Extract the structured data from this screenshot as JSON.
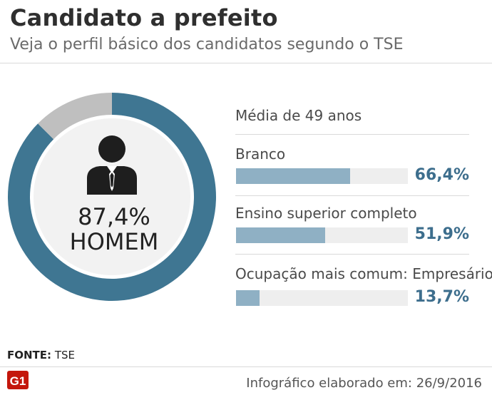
{
  "header": {
    "title": "Candidato a prefeito",
    "subtitle": "Veja o perfil básico dos candidatos segundo o TSE"
  },
  "donut": {
    "percent_label": "87,4%",
    "label": "HOMEM",
    "icon": "businessman-icon"
  },
  "stats": {
    "media": "Média de 49 anos"
  },
  "chart_data": [
    {
      "type": "pie",
      "labels": [
        "HOMEM",
        ""
      ],
      "values": [
        87.4,
        12.6
      ],
      "colors": [
        "#3f7692",
        "#bfbfbf"
      ]
    },
    {
      "type": "bar",
      "categories": [
        "Branco",
        "Ensino superior completo",
        "Ocupação mais comum: Empresário"
      ],
      "values": [
        66.4,
        51.9,
        13.7
      ],
      "value_labels": [
        "66,4%",
        "51,9%",
        "13,7%"
      ],
      "ylim": [
        0,
        100
      ],
      "colors": [
        "#8fb0c4",
        "#eeeeee"
      ]
    }
  ],
  "source": {
    "label": "FONTE:",
    "value": "TSE"
  },
  "footer": {
    "logo_text": "G1",
    "credit": "Infográfico elaborado em: 26/9/2016"
  },
  "colors": {
    "accent": "#3f7692",
    "bar_value": "#3d6e8d",
    "logo_red": "#c4170c"
  }
}
